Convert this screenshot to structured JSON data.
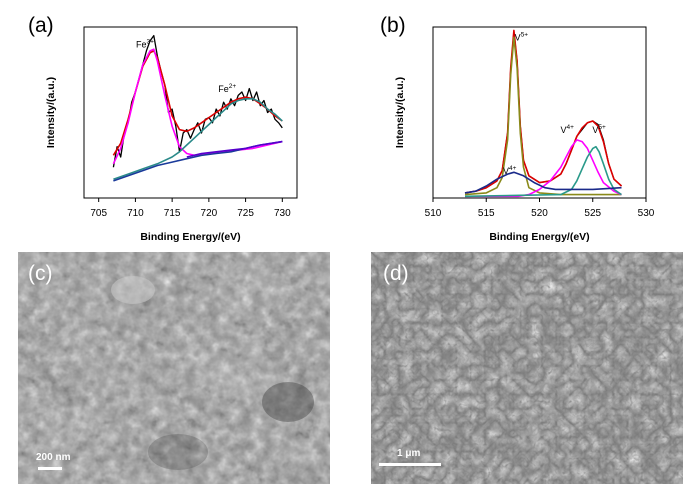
{
  "panels": {
    "a": {
      "label": "(a)"
    },
    "b": {
      "label": "(b)"
    },
    "c": {
      "label": "(c)",
      "scale_bar": "200 nm"
    },
    "d": {
      "label": "(d)",
      "scale_bar": "1 μm"
    }
  },
  "chart_data": [
    {
      "type": "line",
      "panel": "a",
      "xlabel": "Binding Energy/(eV)",
      "ylabel": "Intensity/(a.u.)",
      "xlim": [
        703,
        732
      ],
      "ylim": [
        0,
        1
      ],
      "x_ticks": [
        705,
        710,
        715,
        720,
        725,
        730
      ],
      "annotations": [
        {
          "text": "Fe",
          "sup": "3+",
          "x": 711.3,
          "y": 0.88
        },
        {
          "text": "Fe",
          "sup": "2+",
          "x": 722.5,
          "y": 0.62
        }
      ],
      "series": [
        {
          "color": "#000000",
          "x": [
            707.0,
            707.5,
            708.0,
            708.5,
            709.0,
            709.5,
            710.0,
            710.5,
            711.0,
            711.5,
            712.0,
            712.5,
            713.0,
            713.5,
            714.0,
            714.5,
            715.0,
            715.5,
            716.0,
            716.5,
            717.0,
            717.5,
            718.0,
            718.5,
            719.0,
            719.5,
            720.0,
            720.5,
            721.0,
            721.5,
            722.0,
            722.5,
            723.0,
            723.5,
            724.0,
            724.5,
            725.0,
            725.5,
            726.0,
            726.5,
            727.0,
            727.5,
            728.0,
            728.5,
            729.0,
            729.5,
            730.0
          ],
          "y": [
            0.18,
            0.3,
            0.24,
            0.38,
            0.44,
            0.56,
            0.62,
            0.7,
            0.78,
            0.86,
            0.92,
            0.95,
            0.83,
            0.74,
            0.66,
            0.5,
            0.52,
            0.42,
            0.27,
            0.38,
            0.4,
            0.35,
            0.4,
            0.44,
            0.38,
            0.46,
            0.47,
            0.44,
            0.52,
            0.48,
            0.56,
            0.52,
            0.58,
            0.54,
            0.6,
            0.62,
            0.57,
            0.64,
            0.57,
            0.62,
            0.54,
            0.57,
            0.5,
            0.52,
            0.46,
            0.44,
            0.41
          ]
        },
        {
          "color": "#dd0000",
          "x": [
            707.0,
            708.0,
            709.0,
            710.0,
            711.0,
            712.0,
            712.5,
            713.0,
            714.0,
            715.0,
            716.0,
            717.0,
            718.0,
            719.0,
            720.0,
            721.0,
            722.0,
            723.0,
            724.0,
            725.0,
            726.0,
            727.0,
            728.0,
            729.0,
            730.0
          ],
          "y": [
            0.25,
            0.32,
            0.46,
            0.62,
            0.77,
            0.85,
            0.86,
            0.82,
            0.66,
            0.48,
            0.4,
            0.39,
            0.41,
            0.44,
            0.47,
            0.5,
            0.53,
            0.56,
            0.58,
            0.59,
            0.58,
            0.55,
            0.52,
            0.48,
            0.45
          ]
        },
        {
          "color": "#ff00ff",
          "x": [
            707.0,
            708.0,
            709.0,
            710.0,
            711.0,
            712.0,
            712.5,
            713.0,
            714.0,
            715.0,
            716.0,
            717.0,
            718.0,
            720.0,
            722.0,
            724.0,
            726.0,
            728.0,
            730.0
          ],
          "y": [
            0.2,
            0.29,
            0.44,
            0.62,
            0.78,
            0.86,
            0.87,
            0.8,
            0.6,
            0.42,
            0.3,
            0.26,
            0.25,
            0.26,
            0.27,
            0.28,
            0.29,
            0.31,
            0.33
          ]
        },
        {
          "color": "#2a8a8a",
          "x": [
            707.0,
            709.0,
            711.0,
            713.0,
            715.0,
            716.0,
            717.0,
            718.0,
            719.0,
            720.0,
            721.0,
            722.0,
            723.0,
            724.0,
            725.0,
            726.0,
            727.0,
            728.0,
            729.0,
            730.0
          ],
          "y": [
            0.11,
            0.14,
            0.17,
            0.2,
            0.24,
            0.27,
            0.31,
            0.35,
            0.39,
            0.43,
            0.47,
            0.51,
            0.55,
            0.57,
            0.58,
            0.58,
            0.56,
            0.52,
            0.49,
            0.45
          ]
        },
        {
          "color": "#1a3a9a",
          "x": [
            707.0,
            709.0,
            711.0,
            713.0,
            715.0,
            717.0,
            719.0,
            721.0,
            723.0,
            725.0,
            727.0,
            730.0
          ],
          "y": [
            0.1,
            0.13,
            0.16,
            0.19,
            0.21,
            0.23,
            0.25,
            0.26,
            0.27,
            0.29,
            0.31,
            0.33
          ]
        },
        {
          "color": "#5500cc",
          "x": [
            717.0,
            719.0,
            721.0,
            723.0,
            725.0,
            727.0,
            730.0
          ],
          "y": [
            0.24,
            0.26,
            0.27,
            0.28,
            0.29,
            0.31,
            0.33
          ]
        }
      ]
    },
    {
      "type": "line",
      "panel": "b",
      "xlabel": "Binding Energy/(eV)",
      "ylabel": "Intensity/(a.u.)",
      "xlim": [
        510,
        530
      ],
      "ylim": [
        0,
        1
      ],
      "x_ticks": [
        510,
        515,
        520,
        525,
        530
      ],
      "annotations": [
        {
          "text": "V",
          "sup": "5+",
          "x": 518.3,
          "y": 0.92
        },
        {
          "text": "V",
          "sup": "4+",
          "x": 517.2,
          "y": 0.14
        },
        {
          "text": "V",
          "sup": "4+",
          "x": 522.6,
          "y": 0.38
        },
        {
          "text": "V",
          "sup": "5+",
          "x": 525.6,
          "y": 0.38
        }
      ],
      "series": [
        {
          "color": "#000000",
          "x": [
            513.0,
            514.0,
            515.0,
            516.0,
            516.5,
            517.0,
            517.3,
            517.6,
            517.9,
            518.2,
            518.5,
            519.0,
            520.0,
            521.0,
            522.0,
            522.5,
            523.0,
            523.5,
            524.0,
            524.5,
            525.0,
            525.5,
            526.0,
            526.5,
            527.0,
            527.7
          ],
          "y": [
            0.03,
            0.04,
            0.06,
            0.1,
            0.16,
            0.38,
            0.75,
            0.97,
            0.8,
            0.42,
            0.22,
            0.13,
            0.09,
            0.1,
            0.14,
            0.2,
            0.28,
            0.36,
            0.4,
            0.44,
            0.45,
            0.43,
            0.34,
            0.2,
            0.11,
            0.07
          ]
        },
        {
          "color": "#dd0000",
          "x": [
            513.0,
            514.0,
            515.0,
            516.0,
            516.5,
            517.0,
            517.3,
            517.6,
            517.9,
            518.2,
            518.5,
            519.0,
            520.0,
            521.0,
            522.0,
            522.5,
            523.0,
            523.5,
            524.0,
            524.5,
            525.0,
            525.5,
            526.0,
            526.5,
            527.0,
            527.7
          ],
          "y": [
            0.03,
            0.04,
            0.06,
            0.1,
            0.16,
            0.38,
            0.76,
            0.98,
            0.8,
            0.42,
            0.22,
            0.13,
            0.09,
            0.1,
            0.14,
            0.2,
            0.28,
            0.36,
            0.41,
            0.44,
            0.45,
            0.42,
            0.33,
            0.2,
            0.11,
            0.07
          ]
        },
        {
          "color": "#8a8a1a",
          "x": [
            513.0,
            515.0,
            516.0,
            516.5,
            517.0,
            517.3,
            517.6,
            517.9,
            518.2,
            518.5,
            519.0,
            520.0,
            522.0,
            525.0,
            527.7
          ],
          "y": [
            0.02,
            0.03,
            0.06,
            0.12,
            0.34,
            0.72,
            0.94,
            0.76,
            0.38,
            0.18,
            0.06,
            0.03,
            0.02,
            0.02,
            0.02
          ]
        },
        {
          "color": "#ff00ff",
          "x": [
            513.0,
            518.0,
            519.0,
            520.0,
            521.0,
            522.0,
            522.5,
            523.0,
            523.5,
            524.0,
            524.5,
            525.0,
            525.5,
            526.0,
            527.0,
            527.7
          ],
          "y": [
            0.01,
            0.01,
            0.02,
            0.05,
            0.1,
            0.18,
            0.24,
            0.3,
            0.34,
            0.33,
            0.29,
            0.22,
            0.15,
            0.09,
            0.04,
            0.02
          ]
        },
        {
          "color": "#2a9a8a",
          "x": [
            513.0,
            522.0,
            523.0,
            523.5,
            524.0,
            524.5,
            525.0,
            525.3,
            525.6,
            526.0,
            526.5,
            527.0,
            527.7
          ],
          "y": [
            0.01,
            0.02,
            0.05,
            0.1,
            0.17,
            0.24,
            0.29,
            0.3,
            0.27,
            0.2,
            0.11,
            0.05,
            0.02
          ]
        },
        {
          "color": "#1a2a8a",
          "x": [
            513.0,
            514.0,
            515.0,
            516.0,
            517.0,
            517.6,
            518.5,
            519.5,
            520.5,
            521.5,
            523.0,
            525.0,
            527.7
          ],
          "y": [
            0.03,
            0.04,
            0.07,
            0.11,
            0.14,
            0.15,
            0.13,
            0.09,
            0.06,
            0.05,
            0.05,
            0.05,
            0.06
          ]
        }
      ]
    }
  ]
}
